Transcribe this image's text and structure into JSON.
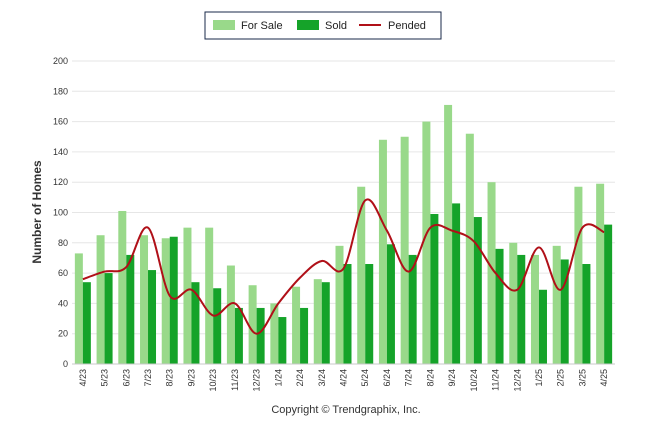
{
  "chart_data": {
    "type": "bar",
    "categories": [
      "4/23",
      "5/23",
      "6/23",
      "7/23",
      "8/23",
      "9/23",
      "10/23",
      "11/23",
      "12/23",
      "1/24",
      "2/24",
      "3/24",
      "4/24",
      "5/24",
      "6/24",
      "7/24",
      "8/24",
      "9/24",
      "10/24",
      "11/24",
      "12/24",
      "1/25",
      "2/25",
      "3/25",
      "4/25"
    ],
    "series": [
      {
        "name": "For Sale",
        "kind": "bar",
        "color": "#99d98a",
        "values": [
          73,
          85,
          101,
          85,
          83,
          90,
          90,
          65,
          52,
          40,
          51,
          56,
          78,
          117,
          148,
          150,
          160,
          171,
          152,
          120,
          80,
          72,
          78,
          117,
          119
        ]
      },
      {
        "name": "Sold",
        "kind": "bar",
        "color": "#15a329",
        "values": [
          54,
          60,
          72,
          62,
          84,
          54,
          50,
          37,
          37,
          31,
          37,
          54,
          66,
          66,
          79,
          72,
          99,
          106,
          97,
          76,
          72,
          49,
          69,
          66,
          92
        ]
      },
      {
        "name": "Pended",
        "kind": "line",
        "color": "#b01018",
        "values": [
          56,
          61,
          64,
          90,
          45,
          49,
          32,
          40,
          20,
          40,
          57,
          68,
          63,
          108,
          88,
          61,
          90,
          88,
          81,
          60,
          49,
          77,
          49,
          90,
          87
        ]
      }
    ],
    "ylabel": "Number of Homes",
    "ylim": [
      0,
      200
    ],
    "yticks": [
      "0",
      "20",
      "40",
      "60",
      "80",
      "100",
      "120",
      "140",
      "160",
      "180",
      "200"
    ],
    "grid": true,
    "legend_position": "top-center"
  },
  "copyright": "Copyright © Trendgraphix, Inc."
}
